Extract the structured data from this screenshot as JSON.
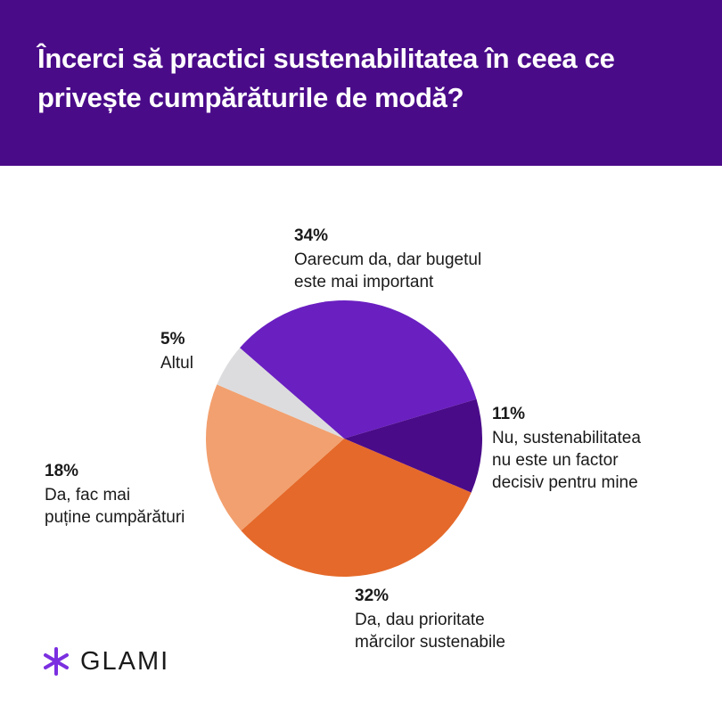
{
  "chart_data": {
    "type": "pie",
    "title": "Încerci să practici sustenabilitatea în ceea ce privește cumpărăturile de modă?",
    "categories": [
      "Oarecum da, dar bugetul\neste mai important",
      "Nu, sustenabilitatea\nnu este un factor\ndecisiv pentru mine",
      "Da, dau prioritate\nmărcilor sustenabile",
      "Da, fac mai\npuține cumpărături",
      "Altul"
    ],
    "values": [
      34,
      11,
      32,
      18,
      5
    ],
    "value_labels": [
      "34%",
      "11%",
      "32%",
      "18%",
      "5%"
    ],
    "colors": [
      "#6a1fc1",
      "#4a0b89",
      "#e5692a",
      "#f2a06f",
      "#dcdcde"
    ]
  },
  "brand": "GLAMI"
}
